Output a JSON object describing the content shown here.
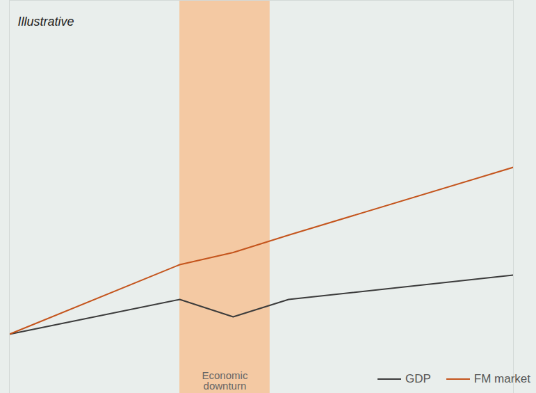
{
  "chart_data": {
    "type": "line",
    "subtitle": "Illustrative",
    "x": [
      0,
      33.8,
      44.4,
      55.4,
      100
    ],
    "series": [
      {
        "name": "GDP",
        "color": "#3b3b3b",
        "values": [
          0,
          20,
          10,
          20,
          34
        ]
      },
      {
        "name": "FM market",
        "color": "#c4541c",
        "values": [
          0,
          40,
          47,
          57,
          96
        ]
      }
    ],
    "xlim": [
      0,
      100
    ],
    "ylim": [
      -34,
      192
    ],
    "xticks": [],
    "yticks": [],
    "tick_labels": false,
    "grid": false,
    "legend": "bottom-right",
    "annotations": [
      {
        "type": "band",
        "x1": 33.8,
        "x2": 51.7,
        "label": "Economic downturn",
        "color": "#f4c9a3"
      }
    ]
  }
}
